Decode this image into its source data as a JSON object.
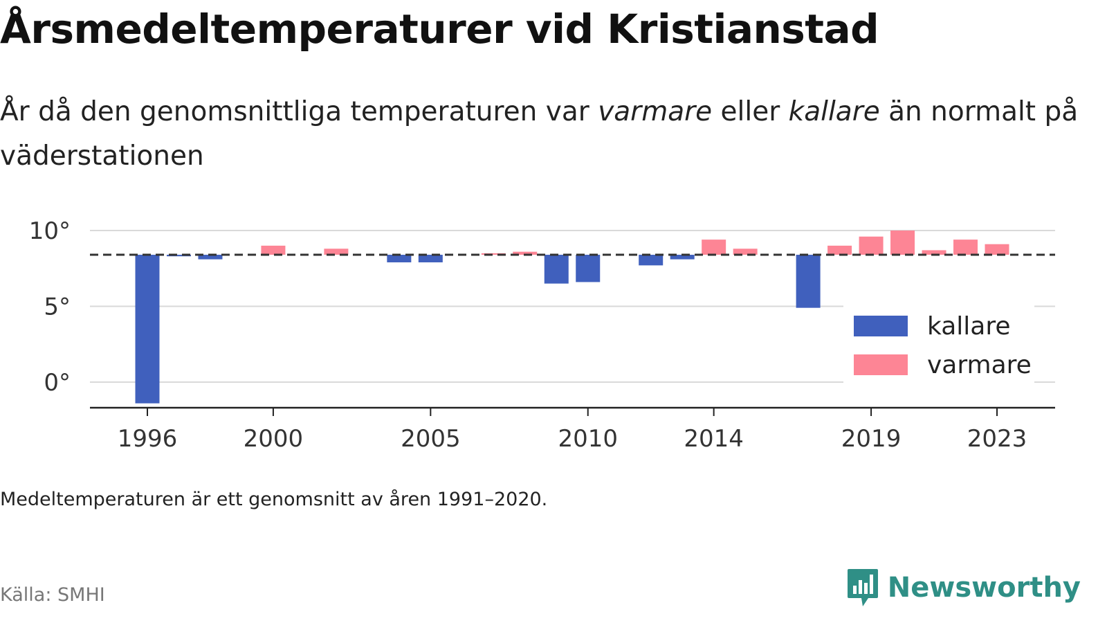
{
  "title": "Årsmedeltemperaturer vid Kristianstad",
  "subtitle": {
    "part1": "År då den genomsnittliga temperaturen var ",
    "warm_word": "varmare",
    "part2": " eller ",
    "cold_word": "kallare",
    "part3": " än normalt på väderstationen"
  },
  "note": "Medeltemperaturen är ett genomsnitt av åren 1991–2020.",
  "source": "Källa: SMHI",
  "brand": "Newsworthy",
  "colors": {
    "cold": "#4060bd",
    "warm": "#fd8595",
    "grid": "#d9d9d9",
    "axis": "#222222",
    "brand": "#2f8f86"
  },
  "chart_data": {
    "type": "bar",
    "baseline": 8.4,
    "baseline_style": "dashed",
    "x": [
      1996,
      1997,
      1998,
      1999,
      2000,
      2001,
      2002,
      2003,
      2004,
      2005,
      2006,
      2007,
      2008,
      2009,
      2010,
      2011,
      2012,
      2013,
      2014,
      2015,
      2016,
      2017,
      2018,
      2019,
      2020,
      2021,
      2022,
      2023
    ],
    "values": [
      -1.4,
      8.3,
      8.1,
      null,
      9.0,
      null,
      8.8,
      null,
      7.9,
      7.9,
      null,
      8.5,
      8.6,
      6.5,
      6.6,
      null,
      7.7,
      8.1,
      9.4,
      8.8,
      null,
      4.9,
      9.0,
      9.6,
      10.0,
      8.7,
      9.4,
      9.1
    ],
    "x_ticks": [
      "1996",
      "2000",
      "2005",
      "2010",
      "2014",
      "2019",
      "2023"
    ],
    "y_ticks": [
      0,
      5,
      10
    ],
    "y_tick_labels": [
      "0°",
      "5°",
      "10°"
    ],
    "ylim": [
      -1.7,
      10.3
    ],
    "grid": true,
    "legend": {
      "placement": "right",
      "items": [
        {
          "name": "kallare",
          "color": "#4060bd"
        },
        {
          "name": "varmare",
          "color": "#fd8595"
        }
      ]
    }
  }
}
